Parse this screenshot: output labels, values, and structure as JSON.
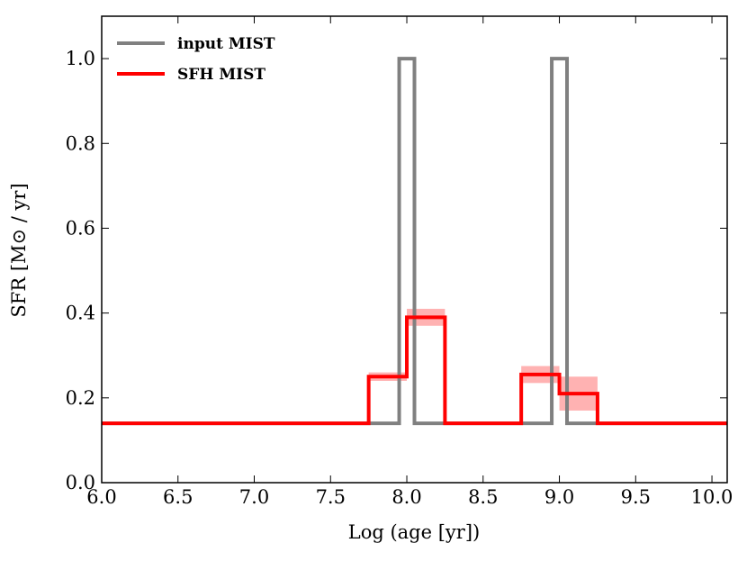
{
  "chart_data": {
    "type": "line",
    "title": "",
    "xlabel": "Log (age [yr])",
    "ylabel": "SFR [M⊙ / yr]",
    "xlim": [
      6.0,
      10.1
    ],
    "ylim": [
      0.0,
      1.1
    ],
    "xticks": [
      6.0,
      6.5,
      7.0,
      7.5,
      8.0,
      8.5,
      9.0,
      9.5,
      10.0
    ],
    "xtick_labels": [
      "6.0",
      "6.5",
      "7.0",
      "7.5",
      "8.0",
      "8.5",
      "9.0",
      "9.5",
      "10.0"
    ],
    "yticks": [
      0.0,
      0.2,
      0.4,
      0.6,
      0.8,
      1.0
    ],
    "ytick_labels": [
      "0.0",
      "0.2",
      "0.4",
      "0.6",
      "0.8",
      "1.0"
    ],
    "grid": false,
    "legend_position": "top-left",
    "series": [
      {
        "name": "input MIST",
        "color": "#808080",
        "style": "step",
        "x": [
          6.0,
          7.95,
          7.95,
          8.05,
          8.05,
          8.95,
          8.95,
          9.05,
          9.05,
          10.1
        ],
        "y": [
          0.14,
          0.14,
          1.0,
          1.0,
          0.14,
          0.14,
          1.0,
          1.0,
          0.14,
          0.14
        ]
      },
      {
        "name": "SFH MIST",
        "color": "#ff0000",
        "style": "step",
        "x": [
          6.0,
          7.75,
          7.75,
          8.0,
          8.0,
          8.25,
          8.25,
          8.75,
          8.75,
          9.0,
          9.0,
          9.25,
          9.25,
          10.1
        ],
        "y": [
          0.14,
          0.14,
          0.25,
          0.25,
          0.39,
          0.39,
          0.14,
          0.14,
          0.255,
          0.255,
          0.21,
          0.21,
          0.14,
          0.14
        ],
        "error_bands": [
          {
            "x0": 7.75,
            "x1": 8.0,
            "low": 0.24,
            "high": 0.26
          },
          {
            "x0": 8.0,
            "x1": 8.25,
            "low": 0.37,
            "high": 0.41
          },
          {
            "x0": 8.75,
            "x1": 9.0,
            "low": 0.235,
            "high": 0.275
          },
          {
            "x0": 9.0,
            "x1": 9.25,
            "low": 0.17,
            "high": 0.25
          }
        ]
      }
    ]
  }
}
